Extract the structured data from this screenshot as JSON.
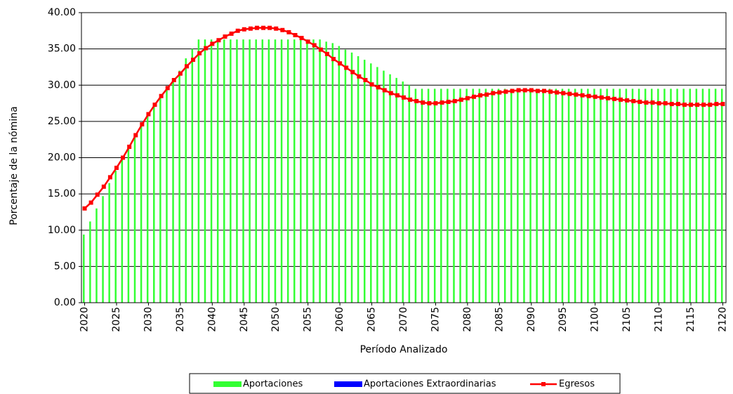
{
  "chart_data": {
    "type": "bar",
    "y_label": "Porcentaje de la nómina",
    "x_label": "Período Analizado",
    "categories": [
      "2020",
      null,
      null,
      null,
      null,
      "2025",
      null,
      null,
      null,
      null,
      "2030",
      null,
      null,
      null,
      null,
      "2035",
      null,
      null,
      null,
      null,
      "2040",
      null,
      null,
      null,
      null,
      "2045",
      null,
      null,
      null,
      null,
      "2050",
      null,
      null,
      null,
      null,
      "2055",
      null,
      null,
      null,
      null,
      "2060",
      null,
      null,
      null,
      null,
      "2065",
      null,
      null,
      null,
      null,
      "2070",
      null,
      null,
      null,
      null,
      "2075",
      null,
      null,
      null,
      null,
      "2080",
      null,
      null,
      null,
      null,
      "2085",
      null,
      null,
      null,
      null,
      "2090",
      null,
      null,
      null,
      null,
      "2095",
      null,
      null,
      null,
      null,
      "2100",
      null,
      null,
      null,
      null,
      "2105",
      null,
      null,
      null,
      null,
      "2110",
      null,
      null,
      null,
      null,
      "2115",
      null,
      null,
      null,
      null,
      "2120"
    ],
    "series": [
      {
        "name": "Aportaciones",
        "type": "bar",
        "color": "#33ff33",
        "values": [
          9.4,
          11.2,
          13.0,
          14.7,
          16.5,
          18.2,
          19.9,
          21.5,
          23.1,
          24.6,
          26.0,
          27.3,
          28.6,
          29.8,
          30.9,
          32.0,
          33.7,
          35.0,
          36.3,
          36.3,
          36.3,
          36.3,
          36.3,
          36.3,
          36.3,
          36.3,
          36.3,
          36.3,
          36.3,
          36.3,
          36.3,
          36.3,
          36.3,
          36.3,
          36.3,
          36.3,
          36.3,
          36.3,
          36.0,
          35.8,
          35.4,
          34.9,
          34.5,
          34.0,
          33.5,
          33.0,
          32.5,
          32.0,
          31.5,
          31.0,
          30.5,
          30.0,
          29.5,
          29.5,
          29.5,
          29.5,
          29.5,
          29.5,
          29.5,
          29.5,
          29.5,
          29.5,
          29.5,
          29.5,
          29.5,
          29.5,
          29.5,
          29.5,
          29.5,
          29.5,
          29.5,
          29.5,
          29.5,
          29.5,
          29.5,
          29.5,
          29.5,
          29.5,
          29.5,
          29.5,
          29.5,
          29.5,
          29.5,
          29.5,
          29.5,
          29.5,
          29.5,
          29.5,
          29.5,
          29.5,
          29.5,
          29.5,
          29.5,
          29.5,
          29.5,
          29.5,
          29.5,
          29.5,
          29.5,
          29.5,
          29.5
        ]
      },
      {
        "name": "Aportaciones Extraordinarias",
        "type": "bar",
        "color": "#0000ff",
        "values": [
          0,
          0,
          0,
          0,
          0,
          0,
          0,
          0,
          0,
          0,
          0,
          0,
          0,
          0,
          0,
          0,
          0,
          0,
          0,
          0,
          0,
          0,
          0,
          0,
          0,
          0,
          0,
          0,
          0,
          0,
          0,
          0,
          0,
          0,
          0,
          0,
          0,
          0,
          0,
          0,
          0,
          0,
          0,
          0,
          0,
          0,
          0,
          0,
          0,
          0,
          0,
          0,
          0,
          0,
          0,
          0,
          0,
          0,
          0,
          0,
          0,
          0,
          0,
          0,
          0,
          0,
          0,
          0,
          0,
          0,
          0,
          0,
          0,
          0,
          0,
          0,
          0,
          0,
          0,
          0,
          0,
          0,
          0,
          0,
          0,
          0,
          0,
          0,
          0,
          0,
          0,
          0,
          0,
          0,
          0,
          0,
          0,
          0,
          0,
          0,
          0
        ]
      },
      {
        "name": "Egresos",
        "type": "line",
        "color": "#ff0000",
        "values": [
          13.0,
          13.8,
          14.9,
          16.0,
          17.3,
          18.6,
          20.0,
          21.5,
          23.1,
          24.6,
          26.0,
          27.3,
          28.5,
          29.6,
          30.7,
          31.6,
          32.6,
          33.5,
          34.4,
          35.1,
          35.7,
          36.2,
          36.7,
          37.1,
          37.5,
          37.7,
          37.8,
          37.9,
          37.9,
          37.9,
          37.8,
          37.6,
          37.3,
          36.9,
          36.5,
          36.0,
          35.5,
          34.9,
          34.3,
          33.6,
          33.0,
          32.4,
          31.8,
          31.2,
          30.7,
          30.1,
          29.7,
          29.3,
          28.9,
          28.6,
          28.3,
          28.0,
          27.8,
          27.6,
          27.5,
          27.5,
          27.6,
          27.7,
          27.8,
          28.0,
          28.2,
          28.4,
          28.6,
          28.7,
          28.9,
          29.0,
          29.1,
          29.2,
          29.3,
          29.3,
          29.3,
          29.2,
          29.2,
          29.1,
          29.0,
          28.9,
          28.8,
          28.7,
          28.6,
          28.5,
          28.4,
          28.3,
          28.2,
          28.1,
          28.0,
          27.9,
          27.8,
          27.7,
          27.6,
          27.6,
          27.5,
          27.5,
          27.4,
          27.4,
          27.3,
          27.3,
          27.3,
          27.3,
          27.3,
          27.4,
          27.4
        ]
      }
    ],
    "ylim": [
      0,
      40
    ],
    "yticks": [
      {
        "value": 0,
        "label": "0.00"
      },
      {
        "value": 5,
        "label": "5.00"
      },
      {
        "value": 10,
        "label": "10.00"
      },
      {
        "value": 15,
        "label": "15.00"
      },
      {
        "value": 20,
        "label": "20.00"
      },
      {
        "value": 25,
        "label": "25.00"
      },
      {
        "value": 30,
        "label": "30.00"
      },
      {
        "value": 35,
        "label": "35.00"
      },
      {
        "value": 40,
        "label": "40.00"
      }
    ],
    "grid": true,
    "legend": "bottom"
  }
}
